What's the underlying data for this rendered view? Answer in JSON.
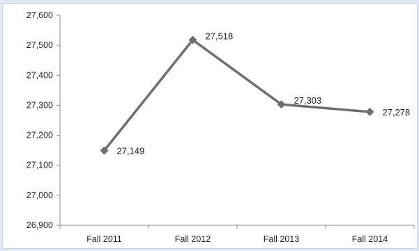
{
  "chart_data": {
    "type": "line",
    "title": "",
    "xlabel": "",
    "ylabel": "",
    "categories": [
      "Fall 2011",
      "Fall 2012",
      "Fall 2013",
      "Fall 2014"
    ],
    "series": [
      {
        "values": [
          27149,
          27518,
          27303,
          27278
        ],
        "color": "#6e6e6e",
        "marker": "diamond"
      }
    ],
    "data_labels": [
      "27,149",
      "27,518",
      "27,303",
      "27,278"
    ],
    "ylim": [
      26900,
      27600
    ],
    "yticks": [
      26900,
      27000,
      27100,
      27200,
      27300,
      27400,
      27500,
      27600
    ],
    "ytick_labels": [
      "26,900",
      "27,000",
      "27,100",
      "27,200",
      "27,300",
      "27,400",
      "27,500",
      "27,600"
    ],
    "grid": false,
    "legend": "none"
  }
}
